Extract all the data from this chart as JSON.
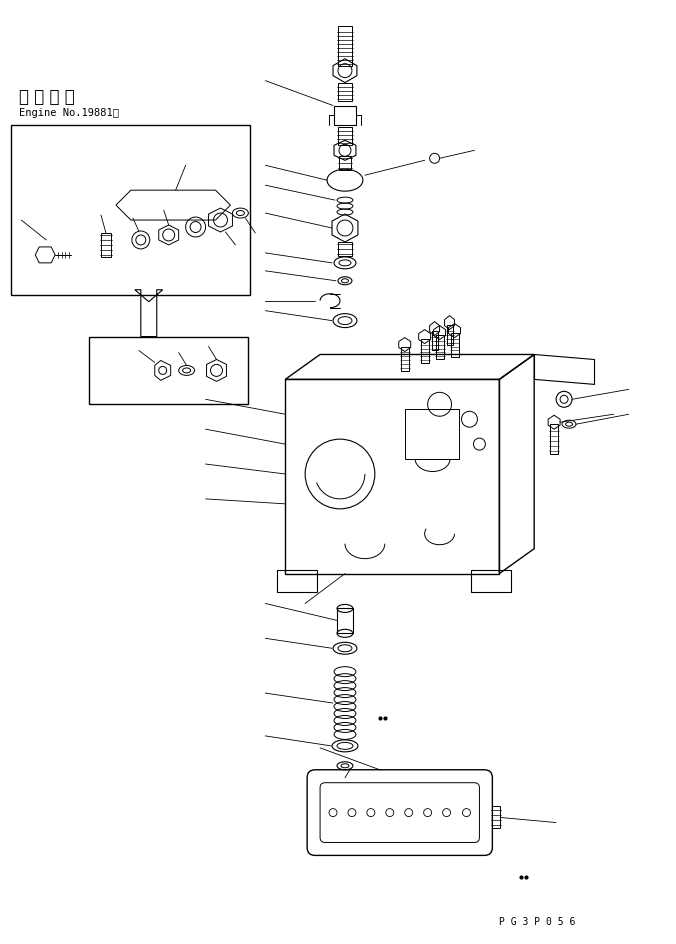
{
  "bg_color": "#ffffff",
  "line_color": "#000000",
  "fig_width": 6.76,
  "fig_height": 9.45,
  "dpi": 100,
  "title_jp": "適 用 号 機",
  "title_en": "Engine No.19881～",
  "part_code": "P G 3 P 0 5 6"
}
